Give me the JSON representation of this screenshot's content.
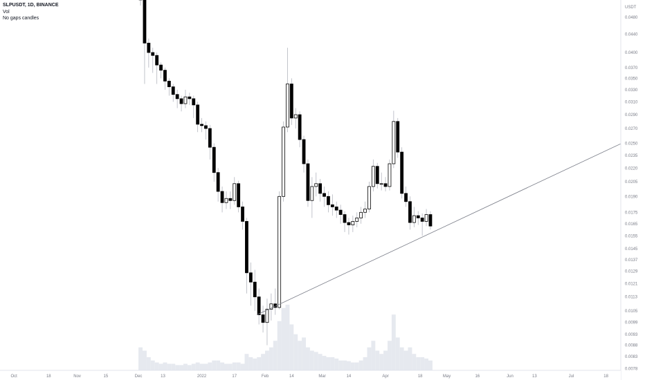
{
  "legend": {
    "symbol": "SLPUSDT, 1D, BINANCE",
    "vol": "Vol",
    "note": "No gaps candles"
  },
  "chart_data": {
    "type": "candlestick",
    "symbol": "SLPUSDT",
    "interval": "1D",
    "exchange": "BINANCE",
    "currency": "USDT",
    "y_scale": "log",
    "grid": false,
    "colors": {
      "down": "#000000",
      "up": "#ffffff",
      "outline": "#000000",
      "volume": "#e6e9ef",
      "trendline": "#787b86"
    },
    "y_ticks": [
      "0.0480",
      "0.0440",
      "0.0400",
      "0.0370",
      "0.0350",
      "0.0330",
      "0.0310",
      "0.0290",
      "0.0270",
      "0.0250",
      "0.0235",
      "0.0220",
      "0.0205",
      "0.0190",
      "0.0175",
      "0.0165",
      "0.0155",
      "0.0145",
      "0.0137",
      "0.0129",
      "0.0121",
      "0.0113",
      "0.0105",
      "0.0099",
      "0.0093",
      "0.0088",
      "0.0083",
      "0.0078"
    ],
    "x_ticks": [
      {
        "label": "Oct",
        "date": "2021-10-01"
      },
      {
        "label": "18",
        "date": "2021-10-18"
      },
      {
        "label": "Nov",
        "date": "2021-11-01"
      },
      {
        "label": "15",
        "date": "2021-11-15"
      },
      {
        "label": "Dec",
        "date": "2021-12-01"
      },
      {
        "label": "13",
        "date": "2021-12-13"
      },
      {
        "label": "2022",
        "date": "2022-01-01"
      },
      {
        "label": "17",
        "date": "2022-01-17"
      },
      {
        "label": "Feb",
        "date": "2022-02-01"
      },
      {
        "label": "14",
        "date": "2022-02-14"
      },
      {
        "label": "Mar",
        "date": "2022-03-01"
      },
      {
        "label": "14",
        "date": "2022-03-14"
      },
      {
        "label": "Apr",
        "date": "2022-04-01"
      },
      {
        "label": "18",
        "date": "2022-04-18"
      },
      {
        "label": "May",
        "date": "2022-05-01"
      },
      {
        "label": "16",
        "date": "2022-05-16"
      },
      {
        "label": "Jun",
        "date": "2022-06-01"
      },
      {
        "label": "13",
        "date": "2022-06-13"
      },
      {
        "label": "Jul",
        "date": "2022-07-01"
      },
      {
        "label": "18",
        "date": "2022-07-18"
      }
    ],
    "first_candle_date": "2021-12-02",
    "candle_step_days": 2,
    "ohlc": [
      [
        0.056,
        0.058,
        0.051,
        0.0525
      ],
      [
        0.0525,
        0.053,
        0.034,
        0.042
      ],
      [
        0.042,
        0.043,
        0.037,
        0.04
      ],
      [
        0.04,
        0.041,
        0.036,
        0.0394
      ],
      [
        0.0394,
        0.04,
        0.034,
        0.0375
      ],
      [
        0.0375,
        0.038,
        0.035,
        0.0365
      ],
      [
        0.0365,
        0.037,
        0.033,
        0.0345
      ],
      [
        0.0345,
        0.035,
        0.032,
        0.0335
      ],
      [
        0.0335,
        0.034,
        0.031,
        0.0322
      ],
      [
        0.0322,
        0.033,
        0.03,
        0.0315
      ],
      [
        0.0315,
        0.032,
        0.0295,
        0.0307
      ],
      [
        0.0307,
        0.033,
        0.03,
        0.0318
      ],
      [
        0.0318,
        0.0325,
        0.0305,
        0.0315
      ],
      [
        0.0315,
        0.032,
        0.0285,
        0.0305
      ],
      [
        0.0305,
        0.031,
        0.0265,
        0.0276
      ],
      [
        0.0276,
        0.0285,
        0.0265,
        0.0274
      ],
      [
        0.0274,
        0.028,
        0.0255,
        0.027
      ],
      [
        0.027,
        0.0275,
        0.023,
        0.0245
      ],
      [
        0.0245,
        0.025,
        0.0205,
        0.0215
      ],
      [
        0.0215,
        0.022,
        0.0185,
        0.0195
      ],
      [
        0.0195,
        0.02,
        0.0175,
        0.0184
      ],
      [
        0.0184,
        0.0195,
        0.0178,
        0.0188
      ],
      [
        0.0188,
        0.0195,
        0.0178,
        0.0186
      ],
      [
        0.0186,
        0.021,
        0.0182,
        0.0203
      ],
      [
        0.0203,
        0.0206,
        0.0175,
        0.018
      ],
      [
        0.018,
        0.0185,
        0.016,
        0.0167
      ],
      [
        0.0167,
        0.017,
        0.0115,
        0.0128
      ],
      [
        0.0128,
        0.0135,
        0.0108,
        0.0122
      ],
      [
        0.0122,
        0.013,
        0.0105,
        0.0113
      ],
      [
        0.0113,
        0.0118,
        0.0098,
        0.0103
      ],
      [
        0.0103,
        0.0108,
        0.0094,
        0.0099
      ],
      [
        0.0099,
        0.0112,
        0.0088,
        0.0106
      ],
      [
        0.0106,
        0.0115,
        0.01,
        0.0109
      ],
      [
        0.0109,
        0.0118,
        0.0103,
        0.0107
      ],
      [
        0.0107,
        0.0195,
        0.0106,
        0.019
      ],
      [
        0.019,
        0.028,
        0.0185,
        0.0272
      ],
      [
        0.0272,
        0.041,
        0.0265,
        0.034
      ],
      [
        0.034,
        0.035,
        0.0275,
        0.0285
      ],
      [
        0.0285,
        0.03,
        0.027,
        0.029
      ],
      [
        0.029,
        0.0295,
        0.0245,
        0.0255
      ],
      [
        0.0255,
        0.026,
        0.0215,
        0.0225
      ],
      [
        0.0225,
        0.023,
        0.018,
        0.0186
      ],
      [
        0.0186,
        0.021,
        0.017,
        0.02
      ],
      [
        0.02,
        0.0215,
        0.019,
        0.0203
      ],
      [
        0.0203,
        0.0208,
        0.0185,
        0.0193
      ],
      [
        0.0193,
        0.02,
        0.018,
        0.019
      ],
      [
        0.019,
        0.0195,
        0.0175,
        0.0182
      ],
      [
        0.0182,
        0.0192,
        0.0172,
        0.018
      ],
      [
        0.018,
        0.0185,
        0.017,
        0.0177
      ],
      [
        0.0177,
        0.0182,
        0.0165,
        0.0173
      ],
      [
        0.0173,
        0.0176,
        0.0158,
        0.0166
      ],
      [
        0.0166,
        0.017,
        0.0156,
        0.0164
      ],
      [
        0.0164,
        0.0172,
        0.0158,
        0.0167
      ],
      [
        0.0167,
        0.0175,
        0.0162,
        0.017
      ],
      [
        0.017,
        0.018,
        0.0165,
        0.0175
      ],
      [
        0.0175,
        0.0185,
        0.017,
        0.0178
      ],
      [
        0.0178,
        0.0205,
        0.0175,
        0.02
      ],
      [
        0.02,
        0.023,
        0.0195,
        0.0222
      ],
      [
        0.0222,
        0.0226,
        0.0198,
        0.0203
      ],
      [
        0.0203,
        0.0215,
        0.0196,
        0.0203
      ],
      [
        0.0203,
        0.021,
        0.0195,
        0.02
      ],
      [
        0.02,
        0.023,
        0.0196,
        0.0225
      ],
      [
        0.0225,
        0.0296,
        0.022,
        0.028
      ],
      [
        0.028,
        0.0285,
        0.0232,
        0.0239
      ],
      [
        0.0239,
        0.0245,
        0.0188,
        0.0193
      ],
      [
        0.0193,
        0.02,
        0.018,
        0.0185
      ],
      [
        0.0185,
        0.019,
        0.016,
        0.0166
      ],
      [
        0.0166,
        0.018,
        0.0162,
        0.0172
      ],
      [
        0.0172,
        0.0176,
        0.0164,
        0.017
      ],
      [
        0.017,
        0.0174,
        0.0155,
        0.0167
      ],
      [
        0.0167,
        0.0178,
        0.0163,
        0.0173
      ],
      [
        0.0173,
        0.0176,
        0.016,
        0.0163
      ]
    ],
    "volume_relative": [
      0.35,
      0.3,
      0.2,
      0.15,
      0.12,
      0.1,
      0.12,
      0.1,
      0.1,
      0.08,
      0.08,
      0.1,
      0.08,
      0.1,
      0.12,
      0.1,
      0.1,
      0.12,
      0.15,
      0.15,
      0.12,
      0.1,
      0.1,
      0.12,
      0.12,
      0.1,
      0.25,
      0.2,
      0.18,
      0.2,
      0.25,
      0.3,
      0.35,
      0.45,
      0.75,
      0.95,
      1.0,
      0.7,
      0.55,
      0.45,
      0.5,
      0.35,
      0.3,
      0.28,
      0.25,
      0.22,
      0.2,
      0.2,
      0.18,
      0.15,
      0.15,
      0.14,
      0.12,
      0.12,
      0.15,
      0.2,
      0.35,
      0.45,
      0.3,
      0.25,
      0.3,
      0.45,
      0.85,
      0.5,
      0.35,
      0.3,
      0.35,
      0.25,
      0.2,
      0.2,
      0.18,
      0.15
    ],
    "trendline": {
      "start": {
        "date": "2022-01-28",
        "price": 0.0103
      },
      "end": {
        "date": "2022-07-28",
        "price": 0.0253
      }
    }
  }
}
